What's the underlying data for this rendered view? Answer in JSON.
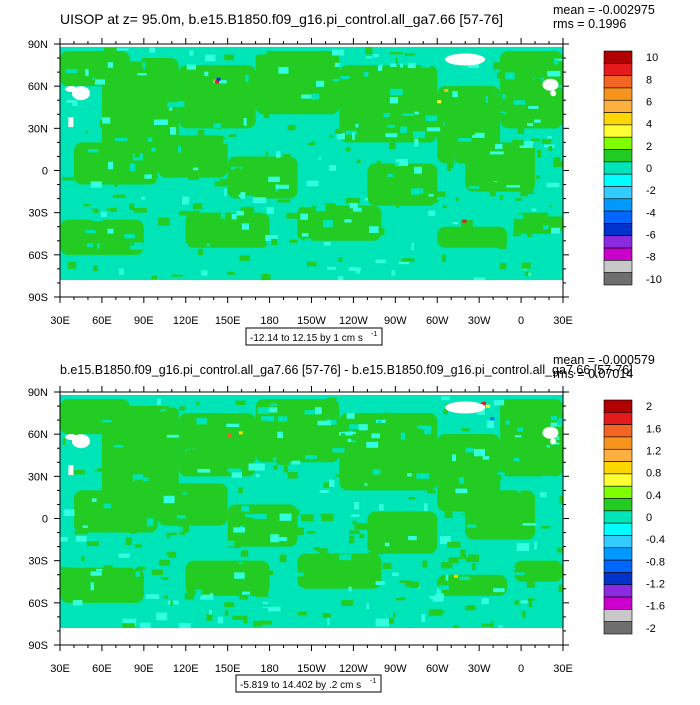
{
  "panels": [
    {
      "title": "UISOP at z=  95.0m, b.e15.B1850.f09_g16.pi_control.all_ga7.66 [57-76]",
      "mean_text": "mean = -0.002975",
      "rms_text": "rms = 0.1996",
      "range_text": "-12.14 to 12.15 by 1 cm s",
      "range_sup": "-1"
    },
    {
      "title": "b.e15.B1850.f09_g16.pi_control.all_ga7.66 [57-76] - b.e15.B1850.f09_g16.pi_control.all_ga7.66 [57-76]",
      "mean_text": "mean = -0.000579",
      "rms_text": "rms = 0.07014",
      "range_text": "-5.819 to 14.402 by .2 cm s",
      "range_sup": "-1"
    }
  ],
  "chart_data": [
    {
      "type": "heatmap",
      "title": "UISOP at z=  95.0m, b.e15.B1850.f09_g16.pi_control.all_ga7.66 [57-76]",
      "xlabel": "",
      "ylabel": "",
      "x_ticks": [
        "30E",
        "60E",
        "90E",
        "120E",
        "150E",
        "180",
        "150W",
        "120W",
        "90W",
        "60W",
        "30W",
        "0",
        "30E"
      ],
      "y_ticks": [
        "90N",
        "60N",
        "30N",
        "0",
        "30S",
        "60S",
        "90S"
      ],
      "xlim": [
        30,
        390
      ],
      "ylim": [
        -90,
        90
      ],
      "colorbar": {
        "labels": [
          "10",
          "8",
          "6",
          "4",
          "2",
          "0",
          "-2",
          "-4",
          "-6",
          "-8",
          "-10"
        ],
        "colors": [
          "#b00000",
          "#e41a1c",
          "#f26522",
          "#f7941d",
          "#fbb040",
          "#ffd700",
          "#ffff33",
          "#7fff00",
          "#22cc22",
          "#00e5b8",
          "#00ffff",
          "#33ccff",
          "#0099ff",
          "#0066ff",
          "#0033cc",
          "#8a2be2",
          "#cc00cc",
          "#c8c8c8",
          "#6e6e6e"
        ]
      },
      "stats": {
        "mean": -0.002975,
        "rms": 0.1996
      }
    },
    {
      "type": "heatmap",
      "title": "b.e15.B1850.f09_g16.pi_control.all_ga7.66 [57-76] - b.e15.B1850.f09_g16.pi_control.all_ga7.66 [57-76]",
      "xlabel": "",
      "ylabel": "",
      "x_ticks": [
        "30E",
        "60E",
        "90E",
        "120E",
        "150E",
        "180",
        "150W",
        "120W",
        "90W",
        "60W",
        "30W",
        "0",
        "30E"
      ],
      "y_ticks": [
        "90N",
        "60N",
        "30N",
        "0",
        "30S",
        "60S",
        "90S"
      ],
      "xlim": [
        30,
        390
      ],
      "ylim": [
        -90,
        90
      ],
      "colorbar": {
        "labels": [
          "2",
          "1.6",
          "1.2",
          "0.8",
          "0.4",
          "0",
          "-0.4",
          "-0.8",
          "-1.2",
          "-1.6",
          "-2"
        ],
        "colors": [
          "#b00000",
          "#e41a1c",
          "#f26522",
          "#f7941d",
          "#fbb040",
          "#ffd700",
          "#ffff33",
          "#7fff00",
          "#22cc22",
          "#00e5b8",
          "#00ffff",
          "#33ccff",
          "#0099ff",
          "#0066ff",
          "#0033cc",
          "#8a2be2",
          "#cc00cc",
          "#c8c8c8",
          "#6e6e6e"
        ]
      },
      "stats": {
        "mean": -0.000579,
        "rms": 0.07014
      }
    }
  ]
}
